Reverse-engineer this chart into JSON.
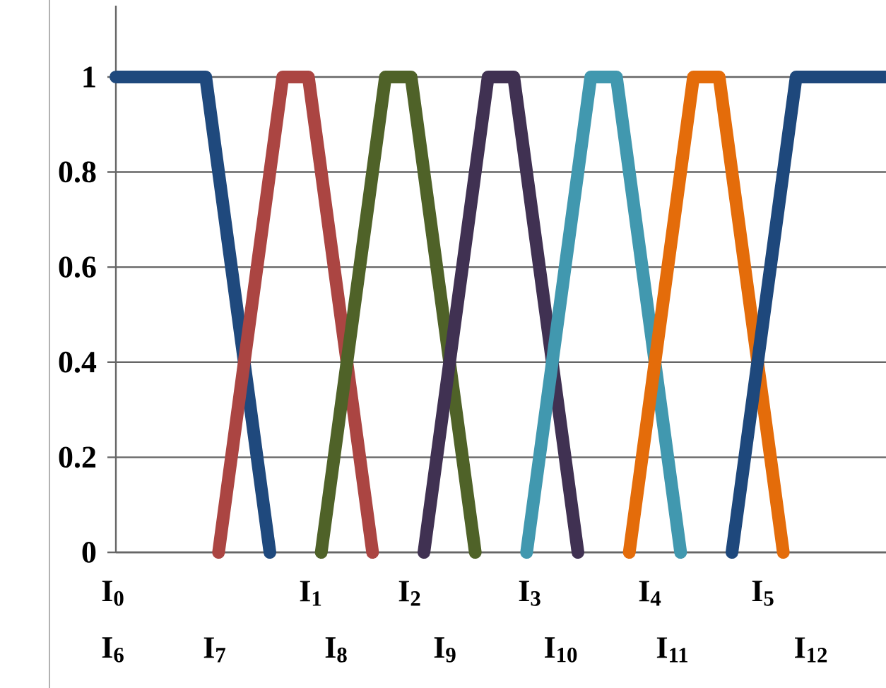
{
  "chart_data": {
    "type": "line",
    "ylim": [
      0,
      1.15
    ],
    "yticks": [
      0,
      0.2,
      0.4,
      0.6,
      0.8,
      1
    ],
    "tick_labels": "y",
    "categories": [
      null,
      null,
      null,
      null,
      null,
      null,
      null,
      null,
      null,
      null,
      null,
      null,
      null,
      null,
      null,
      null,
      null,
      null,
      null,
      null,
      null,
      null,
      null,
      null,
      null,
      null,
      null,
      null,
      null,
      null,
      null,
      null,
      null,
      null,
      null,
      null,
      null,
      null,
      null,
      null,
      null,
      null,
      null,
      null,
      null,
      null,
      null,
      null,
      null,
      null,
      null,
      null,
      null,
      null,
      null,
      null,
      null,
      null,
      null,
      null,
      null
    ],
    "annotations": [
      "I$_{0}$",
      "I$_{1}$",
      "I$_{2}$",
      "I$_{3}$",
      "I$_{4}$",
      "I$_{5}$",
      "I$_{6}$",
      "I$_{7}$",
      "I$_{8}$",
      "I$_{9}$",
      "I$_{10}$",
      "I$_{11}$",
      "I$_{12}$"
    ],
    "grid": "y",
    "marker": "none",
    "line_style": "solid",
    "series": [
      {
        "color": "#1f497d",
        "values": [
          1,
          null,
          null,
          null,
          null,
          null,
          null,
          1,
          null,
          null,
          null,
          null,
          0,
          null,
          null,
          null,
          null,
          null,
          null,
          null,
          null,
          null,
          null,
          null,
          null,
          null,
          null,
          null,
          null,
          null,
          null,
          null,
          null,
          null,
          null,
          null,
          null,
          null,
          null,
          null,
          null,
          null,
          null,
          null,
          null,
          null,
          null,
          null,
          null,
          null,
          null,
          null,
          null,
          null,
          null,
          null,
          null,
          null,
          null,
          null,
          null
        ]
      },
      {
        "color": "#ab4542",
        "values": [
          null,
          null,
          null,
          null,
          null,
          null,
          null,
          null,
          0,
          null,
          null,
          null,
          null,
          1,
          null,
          1,
          null,
          null,
          null,
          null,
          0,
          null,
          null,
          null,
          null,
          null,
          null,
          null,
          null,
          null,
          null,
          null,
          null,
          null,
          null,
          null,
          null,
          null,
          null,
          null,
          null,
          null,
          null,
          null,
          null,
          null,
          null,
          null,
          null,
          null,
          null,
          null,
          null,
          null,
          null,
          null,
          null,
          null,
          null,
          null,
          null
        ]
      },
      {
        "color": "#4f6228",
        "values": [
          null,
          null,
          null,
          null,
          null,
          null,
          null,
          null,
          null,
          null,
          null,
          null,
          null,
          null,
          null,
          null,
          0,
          null,
          null,
          null,
          null,
          1,
          null,
          1,
          null,
          null,
          null,
          null,
          0,
          null,
          null,
          null,
          null,
          null,
          null,
          null,
          null,
          null,
          null,
          null,
          null,
          null,
          null,
          null,
          null,
          null,
          null,
          null,
          null,
          null,
          null,
          null,
          null,
          null,
          null,
          null,
          null,
          null,
          null,
          null,
          null
        ]
      },
      {
        "color": "#403152",
        "values": [
          null,
          null,
          null,
          null,
          null,
          null,
          null,
          null,
          null,
          null,
          null,
          null,
          null,
          null,
          null,
          null,
          null,
          null,
          null,
          null,
          null,
          null,
          null,
          null,
          0,
          null,
          null,
          null,
          null,
          1,
          null,
          1,
          null,
          null,
          null,
          null,
          0,
          null,
          null,
          null,
          null,
          null,
          null,
          null,
          null,
          null,
          null,
          null,
          null,
          null,
          null,
          null,
          null,
          null,
          null,
          null,
          null,
          null,
          null,
          null,
          null
        ]
      },
      {
        "color": "#4198af",
        "values": [
          null,
          null,
          null,
          null,
          null,
          null,
          null,
          null,
          null,
          null,
          null,
          null,
          null,
          null,
          null,
          null,
          null,
          null,
          null,
          null,
          null,
          null,
          null,
          null,
          null,
          null,
          null,
          null,
          null,
          null,
          null,
          null,
          0,
          null,
          null,
          null,
          null,
          1,
          null,
          1,
          null,
          null,
          null,
          null,
          0,
          null,
          null,
          null,
          null,
          null,
          null,
          null,
          null,
          null,
          null,
          null,
          null,
          null,
          null,
          null,
          null
        ]
      },
      {
        "color": "#e46c0a",
        "values": [
          null,
          null,
          null,
          null,
          null,
          null,
          null,
          null,
          null,
          null,
          null,
          null,
          null,
          null,
          null,
          null,
          null,
          null,
          null,
          null,
          null,
          null,
          null,
          null,
          null,
          null,
          null,
          null,
          null,
          null,
          null,
          null,
          null,
          null,
          null,
          null,
          null,
          null,
          null,
          null,
          0,
          null,
          null,
          null,
          null,
          1,
          null,
          1,
          null,
          null,
          null,
          null,
          0,
          null,
          null,
          null,
          null,
          null,
          null,
          null,
          null
        ]
      },
      {
        "color": "#1e487c",
        "values": [
          null,
          null,
          null,
          null,
          null,
          null,
          null,
          null,
          null,
          null,
          null,
          null,
          null,
          null,
          null,
          null,
          null,
          null,
          null,
          null,
          null,
          null,
          null,
          null,
          null,
          null,
          null,
          null,
          null,
          null,
          null,
          null,
          null,
          null,
          null,
          null,
          null,
          null,
          null,
          null,
          null,
          null,
          null,
          null,
          null,
          null,
          null,
          null,
          0,
          null,
          null,
          null,
          null,
          1,
          null,
          null,
          null,
          null,
          null,
          null,
          1
        ]
      }
    ]
  }
}
